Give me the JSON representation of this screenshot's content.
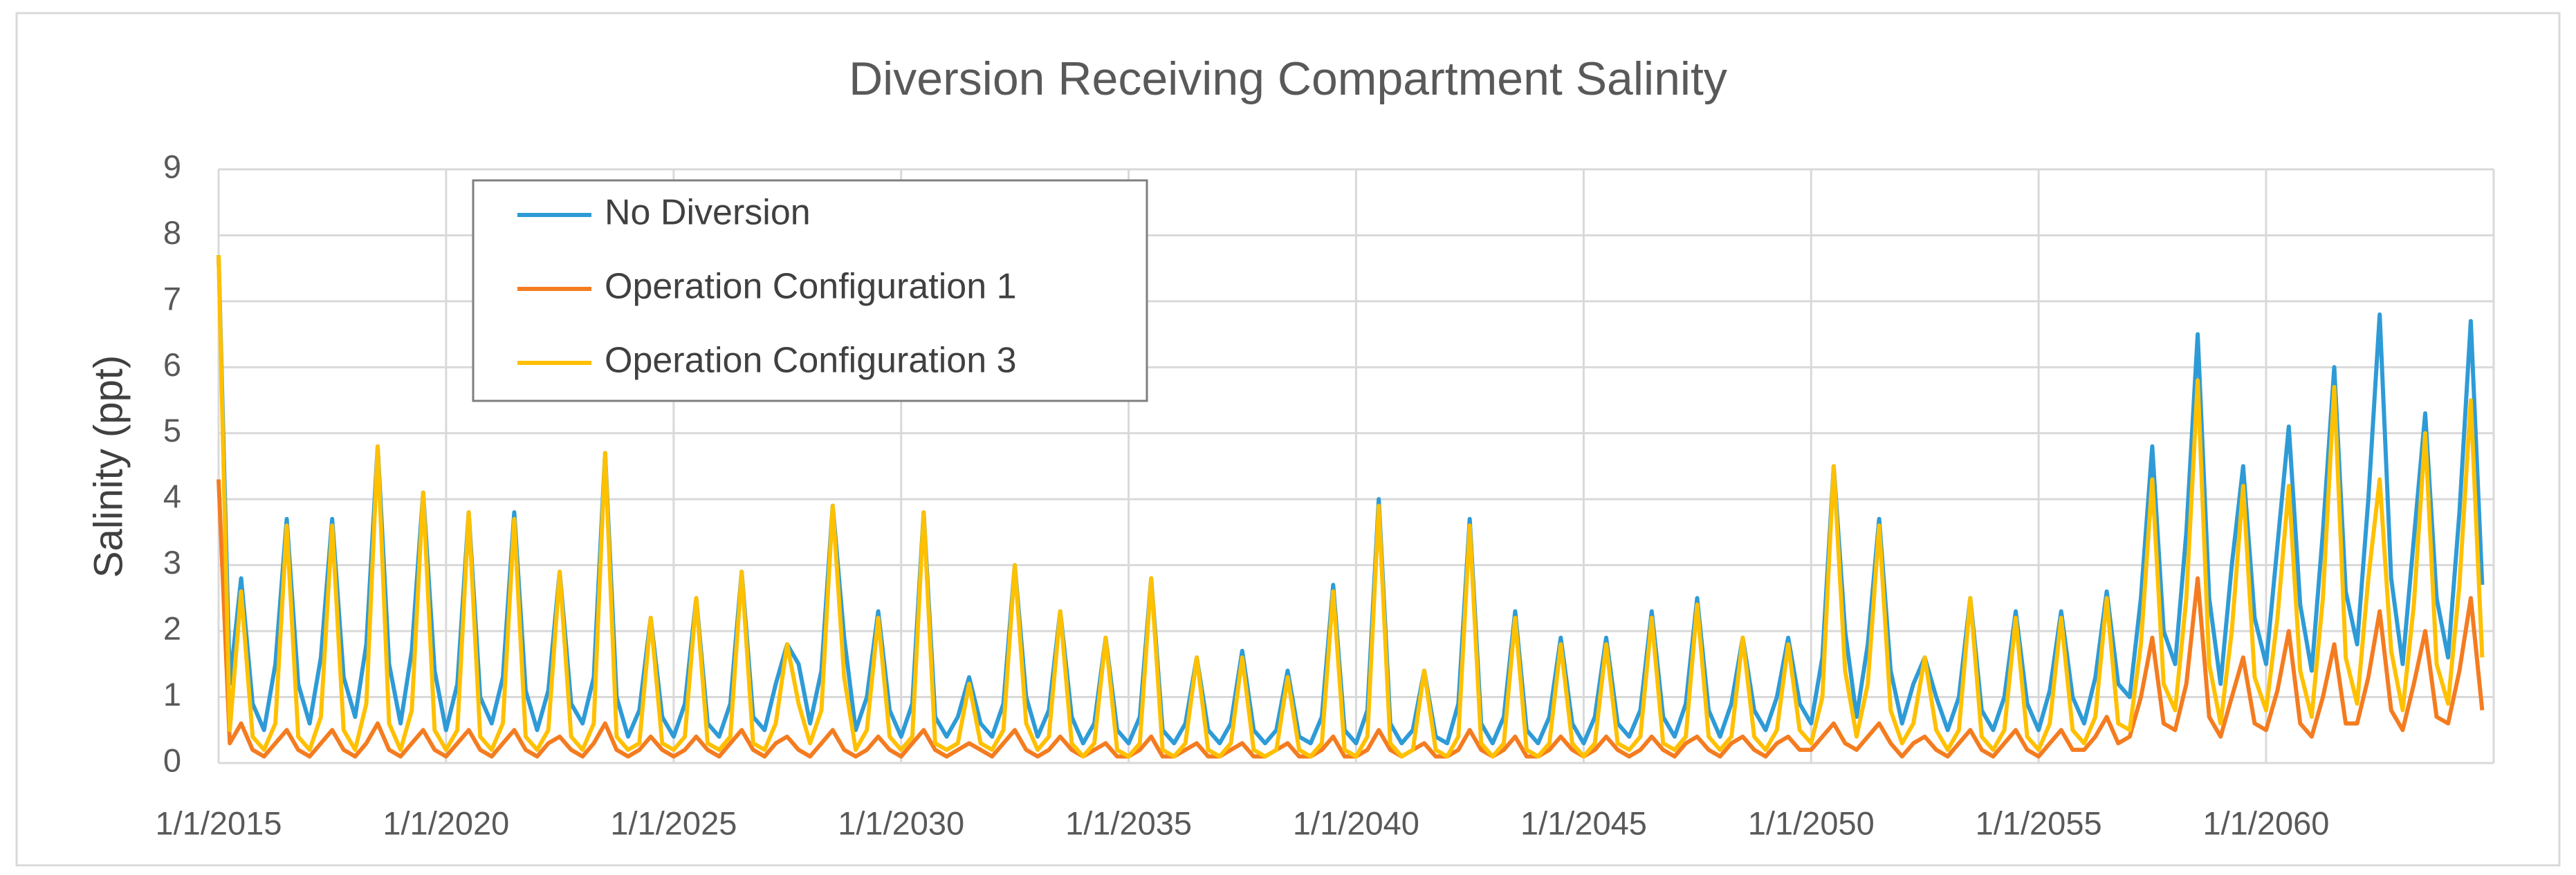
{
  "chart_data": {
    "type": "line",
    "title": "Diversion Receiving Compartment Salinity",
    "y_label": "Salinity (ppt)",
    "x": [
      "2015-01-01",
      "2015-04-01",
      "2015-07-01",
      "2015-10-01",
      "2016-01-01",
      "2016-04-01",
      "2016-07-01",
      "2016-10-01",
      "2017-01-01",
      "2017-04-01",
      "2017-07-01",
      "2017-10-01",
      "2018-01-01",
      "2018-04-01",
      "2018-07-01",
      "2018-10-01",
      "2019-01-01",
      "2019-04-01",
      "2019-07-01",
      "2019-10-01",
      "2020-01-01",
      "2020-04-01",
      "2020-07-01",
      "2020-10-01",
      "2021-01-01",
      "2021-04-01",
      "2021-07-01",
      "2021-10-01",
      "2022-01-01",
      "2022-04-01",
      "2022-07-01",
      "2022-10-01",
      "2023-01-01",
      "2023-04-01",
      "2023-07-01",
      "2023-10-01",
      "2024-01-01",
      "2024-04-01",
      "2024-07-01",
      "2024-10-01",
      "2025-01-01",
      "2025-04-01",
      "2025-07-01",
      "2025-10-01",
      "2026-01-01",
      "2026-04-01",
      "2026-07-01",
      "2026-10-01",
      "2027-01-01",
      "2027-04-01",
      "2027-07-01",
      "2027-10-01",
      "2028-01-01",
      "2028-04-01",
      "2028-07-01",
      "2028-10-01",
      "2029-01-01",
      "2029-04-01",
      "2029-07-01",
      "2029-10-01",
      "2030-01-01",
      "2030-04-01",
      "2030-07-01",
      "2030-10-01",
      "2031-01-01",
      "2031-04-01",
      "2031-07-01",
      "2031-10-01",
      "2032-01-01",
      "2032-04-01",
      "2032-07-01",
      "2032-10-01",
      "2033-01-01",
      "2033-04-01",
      "2033-07-01",
      "2033-10-01",
      "2034-01-01",
      "2034-04-01",
      "2034-07-01",
      "2034-10-01",
      "2035-01-01",
      "2035-04-01",
      "2035-07-01",
      "2035-10-01",
      "2036-01-01",
      "2036-04-01",
      "2036-07-01",
      "2036-10-01",
      "2037-01-01",
      "2037-04-01",
      "2037-07-01",
      "2037-10-01",
      "2038-01-01",
      "2038-04-01",
      "2038-07-01",
      "2038-10-01",
      "2039-01-01",
      "2039-04-01",
      "2039-07-01",
      "2039-10-01",
      "2040-01-01",
      "2040-04-01",
      "2040-07-01",
      "2040-10-01",
      "2041-01-01",
      "2041-04-01",
      "2041-07-01",
      "2041-10-01",
      "2042-01-01",
      "2042-04-01",
      "2042-07-01",
      "2042-10-01",
      "2043-01-01",
      "2043-04-01",
      "2043-07-01",
      "2043-10-01",
      "2044-01-01",
      "2044-04-01",
      "2044-07-01",
      "2044-10-01",
      "2045-01-01",
      "2045-04-01",
      "2045-07-01",
      "2045-10-01",
      "2046-01-01",
      "2046-04-01",
      "2046-07-01",
      "2046-10-01",
      "2047-01-01",
      "2047-04-01",
      "2047-07-01",
      "2047-10-01",
      "2048-01-01",
      "2048-04-01",
      "2048-07-01",
      "2048-10-01",
      "2049-01-01",
      "2049-04-01",
      "2049-07-01",
      "2049-10-01",
      "2050-01-01",
      "2050-04-01",
      "2050-07-01",
      "2050-10-01",
      "2051-01-01",
      "2051-04-01",
      "2051-07-01",
      "2051-10-01",
      "2052-01-01",
      "2052-04-01",
      "2052-07-01",
      "2052-10-01",
      "2053-01-01",
      "2053-04-01",
      "2053-07-01",
      "2053-10-01",
      "2054-01-01",
      "2054-04-01",
      "2054-07-01",
      "2054-10-01",
      "2055-01-01",
      "2055-04-01",
      "2055-07-01",
      "2055-10-01",
      "2056-01-01",
      "2056-04-01",
      "2056-07-01",
      "2056-10-01",
      "2057-01-01",
      "2057-04-01",
      "2057-07-01",
      "2057-10-01",
      "2058-01-01",
      "2058-04-01",
      "2058-07-01",
      "2058-10-01",
      "2059-01-01",
      "2059-04-01",
      "2059-07-01",
      "2059-10-01",
      "2060-01-01",
      "2060-04-01",
      "2060-07-01",
      "2060-10-01",
      "2061-01-01",
      "2061-04-01",
      "2061-07-01",
      "2061-10-01",
      "2062-01-01",
      "2062-04-01",
      "2062-07-01",
      "2062-10-01",
      "2063-01-01",
      "2063-04-01",
      "2063-07-01",
      "2063-10-01",
      "2064-01-01",
      "2064-04-01",
      "2064-07-01",
      "2064-10-01"
    ],
    "series": [
      {
        "name": "No Diversion",
        "color": "#2e9bd6",
        "values": [
          7.7,
          1.2,
          2.8,
          0.9,
          0.5,
          1.5,
          3.7,
          1.2,
          0.6,
          1.6,
          3.7,
          1.3,
          0.7,
          1.8,
          4.8,
          1.5,
          0.6,
          1.7,
          4.1,
          1.4,
          0.5,
          1.2,
          3.8,
          1.0,
          0.6,
          1.3,
          3.8,
          1.1,
          0.5,
          1.1,
          2.9,
          0.9,
          0.6,
          1.3,
          4.7,
          1.0,
          0.4,
          0.8,
          2.2,
          0.7,
          0.4,
          0.9,
          2.5,
          0.6,
          0.4,
          0.9,
          2.9,
          0.7,
          0.5,
          1.2,
          1.8,
          1.5,
          0.6,
          1.4,
          3.9,
          1.9,
          0.5,
          1.0,
          2.3,
          0.8,
          0.4,
          0.9,
          3.8,
          0.7,
          0.4,
          0.7,
          1.3,
          0.6,
          0.4,
          0.9,
          3.0,
          1.0,
          0.4,
          0.8,
          2.3,
          0.7,
          0.3,
          0.6,
          1.9,
          0.5,
          0.3,
          0.7,
          2.8,
          0.5,
          0.3,
          0.6,
          1.6,
          0.5,
          0.3,
          0.6,
          1.7,
          0.5,
          0.3,
          0.5,
          1.4,
          0.4,
          0.3,
          0.7,
          2.7,
          0.5,
          0.3,
          0.8,
          4.0,
          0.6,
          0.3,
          0.5,
          1.4,
          0.4,
          0.3,
          0.9,
          3.7,
          0.6,
          0.3,
          0.7,
          2.3,
          0.5,
          0.3,
          0.7,
          1.9,
          0.6,
          0.3,
          0.7,
          1.9,
          0.6,
          0.4,
          0.8,
          2.3,
          0.7,
          0.4,
          0.9,
          2.5,
          0.8,
          0.4,
          0.9,
          1.9,
          0.8,
          0.5,
          1.0,
          1.9,
          0.9,
          0.6,
          1.6,
          4.5,
          2.0,
          0.7,
          1.8,
          3.7,
          1.4,
          0.6,
          1.2,
          1.6,
          1.0,
          0.5,
          1.0,
          2.5,
          0.8,
          0.5,
          1.0,
          2.3,
          0.9,
          0.5,
          1.1,
          2.3,
          1.0,
          0.6,
          1.3,
          2.6,
          1.2,
          1.0,
          2.5,
          4.8,
          2.0,
          1.5,
          3.5,
          6.5,
          2.5,
          1.2,
          3.0,
          4.5,
          2.2,
          1.5,
          3.3,
          5.1,
          2.4,
          1.4,
          3.5,
          6.0,
          2.6,
          1.8,
          4.0,
          6.8,
          2.8,
          1.5,
          3.4,
          5.3,
          2.5,
          1.6,
          3.8,
          6.7,
          2.7
        ]
      },
      {
        "name": "Operation Configuration 1",
        "color": "#f47c20",
        "values": [
          4.3,
          0.3,
          0.6,
          0.2,
          0.1,
          0.3,
          0.5,
          0.2,
          0.1,
          0.3,
          0.5,
          0.2,
          0.1,
          0.3,
          0.6,
          0.2,
          0.1,
          0.3,
          0.5,
          0.2,
          0.1,
          0.3,
          0.5,
          0.2,
          0.1,
          0.3,
          0.5,
          0.2,
          0.1,
          0.3,
          0.4,
          0.2,
          0.1,
          0.3,
          0.6,
          0.2,
          0.1,
          0.2,
          0.4,
          0.2,
          0.1,
          0.2,
          0.4,
          0.2,
          0.1,
          0.3,
          0.5,
          0.2,
          0.1,
          0.3,
          0.4,
          0.2,
          0.1,
          0.3,
          0.5,
          0.2,
          0.1,
          0.2,
          0.4,
          0.2,
          0.1,
          0.3,
          0.5,
          0.2,
          0.1,
          0.2,
          0.3,
          0.2,
          0.1,
          0.3,
          0.5,
          0.2,
          0.1,
          0.2,
          0.4,
          0.2,
          0.1,
          0.2,
          0.3,
          0.1,
          0.1,
          0.2,
          0.4,
          0.1,
          0.1,
          0.2,
          0.3,
          0.1,
          0.1,
          0.2,
          0.3,
          0.1,
          0.1,
          0.2,
          0.3,
          0.1,
          0.1,
          0.2,
          0.4,
          0.1,
          0.1,
          0.2,
          0.5,
          0.2,
          0.1,
          0.2,
          0.3,
          0.1,
          0.1,
          0.2,
          0.5,
          0.2,
          0.1,
          0.2,
          0.4,
          0.1,
          0.1,
          0.2,
          0.4,
          0.2,
          0.1,
          0.2,
          0.4,
          0.2,
          0.1,
          0.2,
          0.4,
          0.2,
          0.1,
          0.3,
          0.4,
          0.2,
          0.1,
          0.3,
          0.4,
          0.2,
          0.1,
          0.3,
          0.4,
          0.2,
          0.2,
          0.4,
          0.6,
          0.3,
          0.2,
          0.4,
          0.6,
          0.3,
          0.1,
          0.3,
          0.4,
          0.2,
          0.1,
          0.3,
          0.5,
          0.2,
          0.1,
          0.3,
          0.5,
          0.2,
          0.1,
          0.3,
          0.5,
          0.2,
          0.2,
          0.4,
          0.7,
          0.3,
          0.4,
          1.0,
          1.9,
          0.6,
          0.5,
          1.2,
          2.8,
          0.7,
          0.4,
          1.0,
          1.6,
          0.6,
          0.5,
          1.1,
          2.0,
          0.6,
          0.4,
          1.0,
          1.8,
          0.6,
          0.6,
          1.3,
          2.3,
          0.8,
          0.5,
          1.2,
          2.0,
          0.7,
          0.6,
          1.4,
          2.5,
          0.8
        ]
      },
      {
        "name": "Operation Configuration 3",
        "color": "#ffc000",
        "values": [
          7.7,
          0.5,
          2.6,
          0.4,
          0.2,
          0.6,
          3.6,
          0.4,
          0.2,
          0.7,
          3.6,
          0.5,
          0.2,
          0.9,
          4.8,
          0.6,
          0.2,
          0.8,
          4.1,
          0.5,
          0.2,
          0.5,
          3.8,
          0.4,
          0.2,
          0.6,
          3.7,
          0.4,
          0.2,
          0.5,
          2.9,
          0.4,
          0.2,
          0.6,
          4.7,
          0.4,
          0.2,
          0.3,
          2.2,
          0.3,
          0.2,
          0.4,
          2.5,
          0.3,
          0.2,
          0.4,
          2.9,
          0.3,
          0.2,
          0.6,
          1.8,
          0.9,
          0.3,
          0.8,
          3.9,
          1.3,
          0.2,
          0.5,
          2.2,
          0.4,
          0.2,
          0.4,
          3.8,
          0.3,
          0.2,
          0.3,
          1.2,
          0.3,
          0.2,
          0.5,
          3.0,
          0.6,
          0.2,
          0.4,
          2.3,
          0.3,
          0.1,
          0.3,
          1.9,
          0.2,
          0.1,
          0.3,
          2.8,
          0.2,
          0.1,
          0.3,
          1.6,
          0.2,
          0.1,
          0.3,
          1.6,
          0.2,
          0.1,
          0.2,
          1.3,
          0.2,
          0.1,
          0.3,
          2.6,
          0.2,
          0.1,
          0.4,
          3.9,
          0.3,
          0.1,
          0.2,
          1.4,
          0.2,
          0.1,
          0.4,
          3.6,
          0.3,
          0.1,
          0.3,
          2.2,
          0.2,
          0.1,
          0.3,
          1.8,
          0.3,
          0.1,
          0.3,
          1.8,
          0.3,
          0.2,
          0.4,
          2.2,
          0.3,
          0.2,
          0.4,
          2.4,
          0.4,
          0.2,
          0.4,
          1.9,
          0.4,
          0.2,
          0.5,
          1.8,
          0.5,
          0.3,
          1.0,
          4.5,
          1.4,
          0.4,
          1.2,
          3.6,
          0.8,
          0.3,
          0.6,
          1.6,
          0.5,
          0.2,
          0.5,
          2.5,
          0.4,
          0.2,
          0.5,
          2.2,
          0.4,
          0.2,
          0.6,
          2.2,
          0.5,
          0.3,
          0.7,
          2.5,
          0.6,
          0.5,
          1.8,
          4.3,
          1.2,
          0.8,
          2.5,
          5.8,
          1.5,
          0.6,
          2.0,
          4.2,
          1.3,
          0.8,
          2.2,
          4.2,
          1.4,
          0.7,
          2.5,
          5.7,
          1.6,
          0.9,
          2.8,
          4.3,
          1.7,
          0.8,
          2.4,
          5.0,
          1.5,
          0.9,
          2.7,
          5.5,
          1.6
        ]
      }
    ],
    "xlim": [
      "2015-01-01",
      "2065-01-01"
    ],
    "xticks": [
      {
        "value": "2015-01-01",
        "label": "1/1/2015"
      },
      {
        "value": "2020-01-01",
        "label": "1/1/2020"
      },
      {
        "value": "2025-01-01",
        "label": "1/1/2025"
      },
      {
        "value": "2030-01-01",
        "label": "1/1/2030"
      },
      {
        "value": "2035-01-01",
        "label": "1/1/2035"
      },
      {
        "value": "2040-01-01",
        "label": "1/1/2040"
      },
      {
        "value": "2045-01-01",
        "label": "1/1/2045"
      },
      {
        "value": "2050-01-01",
        "label": "1/1/2050"
      },
      {
        "value": "2055-01-01",
        "label": "1/1/2055"
      },
      {
        "value": "2060-01-01",
        "label": "1/1/2060"
      }
    ],
    "ylim": [
      0,
      9
    ],
    "yticks": [
      0,
      1,
      2,
      3,
      4,
      5,
      6,
      7,
      8,
      9
    ],
    "grid": true,
    "legend": "upper left"
  }
}
